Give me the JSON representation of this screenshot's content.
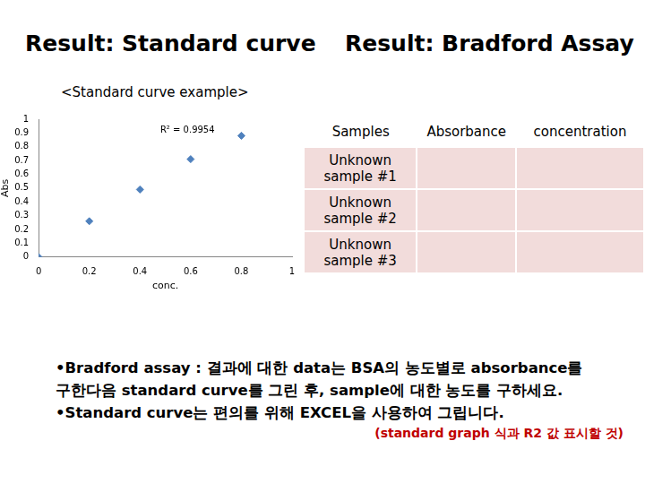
{
  "titles": [
    "Result: Standard curve",
    "Result: Bradford Assay"
  ],
  "subtitle": "<Standard curve example>",
  "chart_data": {
    "type": "scatter",
    "x": [
      0,
      0.2,
      0.4,
      0.6,
      0.8
    ],
    "values": [
      0,
      0.26,
      0.49,
      0.71,
      0.88
    ],
    "color": "#4f81bd",
    "marker": "diamond",
    "x_label": "conc.",
    "y_label": "Abs",
    "annotation": "R² = 0.9954",
    "xlim": [
      0,
      1
    ],
    "xticks": [
      0,
      0.2,
      0.4,
      0.6,
      0.8,
      1
    ],
    "ylim": [
      0,
      1
    ],
    "yticks": [
      0,
      0.1,
      0.2,
      0.3,
      0.4,
      0.5,
      0.6,
      0.7,
      0.8,
      0.9,
      1
    ],
    "grid": false
  },
  "table": {
    "header": [
      "Samples",
      "Absorbance",
      "concentration"
    ],
    "rows": [
      [
        "Unknown sample #1"
      ],
      [
        "Unknown sample #2"
      ],
      [
        "Unknown sample #3"
      ]
    ]
  },
  "notes": [
    "•Bradford assay : 결과에 대한 data는 BSA의 농도별로 absorbance를",
    "구한다음 standard curve를 그린 후, sample에 대한 농도를 구하세요.",
    "•Standard curve는 편의를 위해 EXCEL을 사용하여 그립니다."
  ],
  "note_red": "(standard graph 식과 R2 값 표시할 것)"
}
